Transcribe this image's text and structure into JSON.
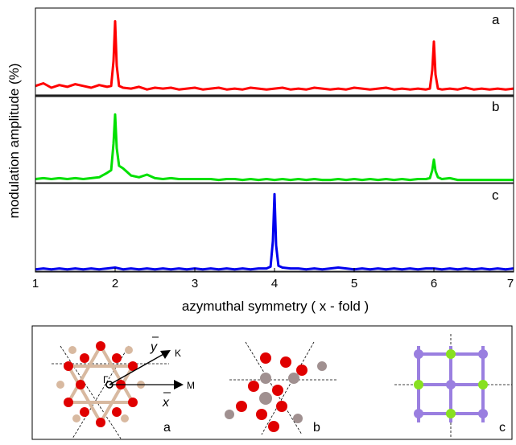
{
  "chart_data": [
    {
      "type": "line",
      "panel_label": "a",
      "x": [
        1.0,
        1.1,
        1.2,
        1.3,
        1.4,
        1.5,
        1.6,
        1.7,
        1.8,
        1.9,
        1.95,
        1.98,
        2.0,
        2.02,
        2.05,
        2.1,
        2.2,
        2.3,
        2.4,
        2.5,
        2.6,
        2.7,
        2.8,
        2.9,
        3.0,
        3.1,
        3.2,
        3.3,
        3.4,
        3.5,
        3.6,
        3.7,
        3.8,
        3.9,
        4.0,
        4.1,
        4.2,
        4.3,
        4.4,
        4.5,
        4.6,
        4.7,
        4.8,
        4.9,
        5.0,
        5.1,
        5.2,
        5.3,
        5.4,
        5.5,
        5.6,
        5.7,
        5.8,
        5.9,
        5.95,
        5.98,
        6.0,
        6.02,
        6.05,
        6.1,
        6.2,
        6.3,
        6.4,
        6.5,
        6.6,
        6.7,
        6.8,
        6.9,
        7.0
      ],
      "series": [
        {
          "color": "#ff0000",
          "values": [
            0.12,
            0.15,
            0.1,
            0.13,
            0.11,
            0.14,
            0.12,
            0.1,
            0.13,
            0.11,
            0.12,
            0.4,
            0.85,
            0.35,
            0.12,
            0.1,
            0.09,
            0.11,
            0.08,
            0.1,
            0.09,
            0.1,
            0.08,
            0.09,
            0.1,
            0.08,
            0.09,
            0.1,
            0.08,
            0.09,
            0.08,
            0.1,
            0.09,
            0.08,
            0.09,
            0.1,
            0.08,
            0.09,
            0.08,
            0.1,
            0.09,
            0.08,
            0.09,
            0.08,
            0.1,
            0.09,
            0.08,
            0.09,
            0.1,
            0.08,
            0.09,
            0.08,
            0.09,
            0.08,
            0.09,
            0.3,
            0.62,
            0.25,
            0.09,
            0.08,
            0.09,
            0.08,
            0.1,
            0.08,
            0.09,
            0.08,
            0.09,
            0.08,
            0.09
          ]
        }
      ],
      "xlim": [
        1,
        7
      ],
      "ylim": [
        0,
        1
      ]
    },
    {
      "type": "line",
      "panel_label": "b",
      "ylabel": "modulation amplitude (%)",
      "x": [
        1.0,
        1.1,
        1.2,
        1.3,
        1.4,
        1.5,
        1.6,
        1.7,
        1.8,
        1.9,
        1.95,
        1.98,
        2.0,
        2.02,
        2.05,
        2.1,
        2.2,
        2.3,
        2.4,
        2.5,
        2.6,
        2.7,
        2.8,
        2.9,
        3.0,
        3.1,
        3.2,
        3.3,
        3.4,
        3.5,
        3.6,
        3.7,
        3.8,
        3.9,
        4.0,
        4.1,
        4.2,
        4.3,
        4.4,
        4.5,
        4.6,
        4.7,
        4.8,
        4.9,
        5.0,
        5.1,
        5.2,
        5.3,
        5.4,
        5.5,
        5.6,
        5.7,
        5.8,
        5.9,
        5.95,
        5.98,
        6.0,
        6.02,
        6.05,
        6.1,
        6.2,
        6.3,
        6.4,
        6.5,
        6.6,
        6.7,
        6.8,
        6.9,
        7.0
      ],
      "series": [
        {
          "color": "#00e000",
          "values": [
            0.05,
            0.06,
            0.05,
            0.06,
            0.05,
            0.06,
            0.05,
            0.06,
            0.07,
            0.12,
            0.15,
            0.45,
            0.78,
            0.4,
            0.2,
            0.17,
            0.09,
            0.07,
            0.1,
            0.06,
            0.05,
            0.06,
            0.05,
            0.05,
            0.05,
            0.05,
            0.05,
            0.04,
            0.05,
            0.05,
            0.04,
            0.05,
            0.04,
            0.05,
            0.04,
            0.05,
            0.04,
            0.05,
            0.04,
            0.05,
            0.04,
            0.04,
            0.05,
            0.04,
            0.05,
            0.04,
            0.05,
            0.04,
            0.05,
            0.04,
            0.05,
            0.04,
            0.05,
            0.05,
            0.06,
            0.15,
            0.27,
            0.14,
            0.07,
            0.05,
            0.06,
            0.04,
            0.04,
            0.04,
            0.04,
            0.04,
            0.04,
            0.04,
            0.04
          ]
        }
      ],
      "xlim": [
        1,
        7
      ],
      "ylim": [
        0,
        1
      ]
    },
    {
      "type": "line",
      "panel_label": "c",
      "xlabel": "azymuthal symmetry ( x - fold )",
      "x": [
        1.0,
        1.1,
        1.2,
        1.3,
        1.4,
        1.5,
        1.6,
        1.7,
        1.8,
        1.9,
        2.0,
        2.1,
        2.2,
        2.3,
        2.4,
        2.5,
        2.6,
        2.7,
        2.8,
        2.9,
        3.0,
        3.1,
        3.2,
        3.3,
        3.4,
        3.5,
        3.6,
        3.7,
        3.8,
        3.9,
        3.95,
        3.98,
        4.0,
        4.02,
        4.05,
        4.1,
        4.2,
        4.3,
        4.4,
        4.5,
        4.6,
        4.7,
        4.8,
        4.9,
        5.0,
        5.1,
        5.2,
        5.3,
        5.4,
        5.5,
        5.6,
        5.7,
        5.8,
        5.9,
        6.0,
        6.1,
        6.2,
        6.3,
        6.4,
        6.5,
        6.6,
        6.7,
        6.8,
        6.9,
        7.0
      ],
      "series": [
        {
          "color": "#0000ee",
          "values": [
            0.03,
            0.04,
            0.03,
            0.04,
            0.03,
            0.04,
            0.03,
            0.04,
            0.03,
            0.04,
            0.05,
            0.03,
            0.04,
            0.03,
            0.04,
            0.03,
            0.04,
            0.03,
            0.04,
            0.03,
            0.04,
            0.03,
            0.04,
            0.03,
            0.04,
            0.03,
            0.04,
            0.03,
            0.04,
            0.04,
            0.06,
            0.35,
            0.88,
            0.3,
            0.07,
            0.05,
            0.04,
            0.04,
            0.03,
            0.04,
            0.03,
            0.04,
            0.05,
            0.04,
            0.03,
            0.04,
            0.03,
            0.04,
            0.03,
            0.04,
            0.03,
            0.04,
            0.03,
            0.04,
            0.04,
            0.03,
            0.04,
            0.03,
            0.04,
            0.03,
            0.04,
            0.03,
            0.04,
            0.03,
            0.04
          ]
        }
      ],
      "xlim": [
        1,
        7
      ],
      "ylim": [
        0,
        1
      ],
      "xticks": [
        1,
        2,
        3,
        4,
        5,
        6,
        7
      ]
    }
  ],
  "inset": {
    "gamma": "Γ",
    "k": "K",
    "m": "M",
    "y": "y",
    "x": "x",
    "labels": [
      "a",
      "b",
      "c"
    ]
  }
}
